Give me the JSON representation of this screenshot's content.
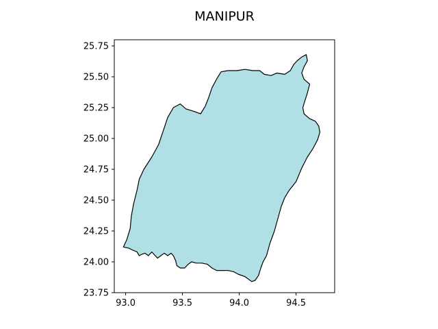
{
  "chart_data": {
    "type": "map",
    "title": "MANIPUR",
    "xlabel": "",
    "ylabel": "",
    "xlim": [
      92.9,
      94.84
    ],
    "ylim": [
      23.75,
      25.8
    ],
    "x_ticks": [
      93.0,
      93.5,
      94.0,
      94.5
    ],
    "x_tick_labels": [
      "93.0",
      "93.5",
      "94.0",
      "94.5"
    ],
    "y_ticks": [
      23.75,
      24.0,
      24.25,
      24.5,
      24.75,
      25.0,
      25.25,
      25.5,
      25.75
    ],
    "y_tick_labels": [
      "23.75",
      "24.00",
      "24.25",
      "24.50",
      "24.75",
      "25.00",
      "25.25",
      "25.50",
      "25.75"
    ],
    "grid": false,
    "fill_color": "#b0dfe5",
    "edge_color": "#000000",
    "boundary": [
      [
        92.98,
        24.12
      ],
      [
        93.03,
        24.11
      ],
      [
        93.05,
        24.1
      ],
      [
        93.1,
        24.08
      ],
      [
        93.12,
        24.05
      ],
      [
        93.14,
        24.06
      ],
      [
        93.17,
        24.07
      ],
      [
        93.2,
        24.05
      ],
      [
        93.23,
        24.08
      ],
      [
        93.26,
        24.05
      ],
      [
        93.28,
        24.03
      ],
      [
        93.31,
        24.05
      ],
      [
        93.34,
        24.07
      ],
      [
        93.37,
        24.05
      ],
      [
        93.4,
        24.07
      ],
      [
        93.42,
        24.05
      ],
      [
        93.44,
        24.01
      ],
      [
        93.45,
        23.97
      ],
      [
        93.48,
        23.95
      ],
      [
        93.52,
        23.95
      ],
      [
        93.55,
        23.98
      ],
      [
        93.58,
        24.0
      ],
      [
        93.62,
        23.99
      ],
      [
        93.67,
        23.99
      ],
      [
        93.72,
        23.98
      ],
      [
        93.76,
        23.95
      ],
      [
        93.8,
        23.93
      ],
      [
        93.85,
        23.93
      ],
      [
        93.9,
        23.93
      ],
      [
        93.95,
        23.92
      ],
      [
        93.99,
        23.9
      ],
      [
        94.05,
        23.88
      ],
      [
        94.08,
        23.86
      ],
      [
        94.11,
        23.84
      ],
      [
        94.14,
        23.85
      ],
      [
        94.17,
        23.89
      ],
      [
        94.19,
        23.95
      ],
      [
        94.21,
        24.0
      ],
      [
        94.24,
        24.05
      ],
      [
        94.27,
        24.15
      ],
      [
        94.31,
        24.25
      ],
      [
        94.34,
        24.35
      ],
      [
        94.37,
        24.45
      ],
      [
        94.4,
        24.52
      ],
      [
        94.44,
        24.58
      ],
      [
        94.5,
        24.65
      ],
      [
        94.55,
        24.76
      ],
      [
        94.6,
        24.85
      ],
      [
        94.65,
        24.92
      ],
      [
        94.69,
        24.99
      ],
      [
        94.71,
        25.05
      ],
      [
        94.7,
        25.1
      ],
      [
        94.67,
        25.14
      ],
      [
        94.62,
        25.16
      ],
      [
        94.57,
        25.2
      ],
      [
        94.56,
        25.25
      ],
      [
        94.58,
        25.31
      ],
      [
        94.6,
        25.37
      ],
      [
        94.62,
        25.44
      ],
      [
        94.57,
        25.48
      ],
      [
        94.55,
        25.53
      ],
      [
        94.57,
        25.58
      ],
      [
        94.6,
        25.63
      ],
      [
        94.59,
        25.68
      ],
      [
        94.55,
        25.66
      ],
      [
        94.51,
        25.63
      ],
      [
        94.48,
        25.6
      ],
      [
        94.45,
        25.55
      ],
      [
        94.4,
        25.52
      ],
      [
        94.33,
        25.53
      ],
      [
        94.28,
        25.51
      ],
      [
        94.22,
        25.52
      ],
      [
        94.18,
        25.55
      ],
      [
        94.12,
        25.55
      ],
      [
        94.05,
        25.56
      ],
      [
        93.98,
        25.55
      ],
      [
        93.9,
        25.55
      ],
      [
        93.84,
        25.54
      ],
      [
        93.8,
        25.48
      ],
      [
        93.76,
        25.41
      ],
      [
        93.73,
        25.33
      ],
      [
        93.7,
        25.26
      ],
      [
        93.66,
        25.2
      ],
      [
        93.6,
        25.22
      ],
      [
        93.53,
        25.24
      ],
      [
        93.48,
        25.28
      ],
      [
        93.42,
        25.25
      ],
      [
        93.37,
        25.17
      ],
      [
        93.33,
        25.06
      ],
      [
        93.29,
        24.95
      ],
      [
        93.23,
        24.85
      ],
      [
        93.16,
        24.75
      ],
      [
        93.12,
        24.67
      ],
      [
        93.1,
        24.58
      ],
      [
        93.07,
        24.47
      ],
      [
        93.05,
        24.37
      ],
      [
        93.04,
        24.27
      ],
      [
        93.01,
        24.18
      ],
      [
        92.98,
        24.12
      ]
    ]
  }
}
